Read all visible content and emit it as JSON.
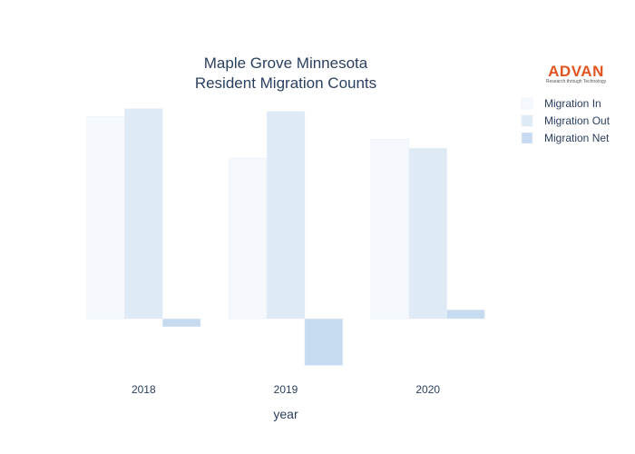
{
  "chart_data": {
    "type": "bar",
    "title_lines": [
      "Maple Grove Minnesota",
      "Resident Migration Counts"
    ],
    "xlabel": "year",
    "ylabel": "",
    "categories": [
      "2018",
      "2019",
      "2020"
    ],
    "series": [
      {
        "name": "Migration In",
        "values": [
          1020,
          810,
          905
        ],
        "color": "#f5f9fd"
      },
      {
        "name": "Migration Out",
        "values": [
          1060,
          1045,
          860
        ],
        "color": "#deeaf6"
      },
      {
        "name": "Migration Net",
        "values": [
          -40,
          -235,
          45
        ],
        "color": "#c6dbef"
      }
    ],
    "ylim": [
      -270,
      1150
    ],
    "grid": false,
    "legend_position": "top-right"
  },
  "logo": {
    "name": "ADVAN",
    "tagline": "Research through Technology"
  }
}
